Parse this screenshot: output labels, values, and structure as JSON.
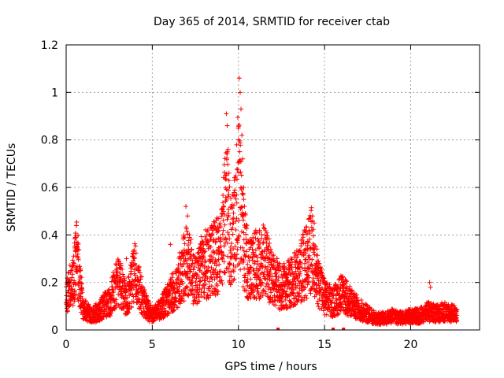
{
  "chart_data": {
    "type": "scatter",
    "title": "Day 365 of 2014, SRMTID for receiver ctab",
    "xlabel": "GPS time / hours",
    "ylabel": "SRMTID / TECUs",
    "xlim": [
      0,
      24
    ],
    "ylim": [
      0,
      1.2
    ],
    "xticks": [
      0,
      5,
      10,
      15,
      20
    ],
    "xtick_labels": [
      "0",
      "5",
      "10",
      "15",
      "20"
    ],
    "yticks": [
      0,
      0.2,
      0.4,
      0.6,
      0.8,
      1.0,
      1.2
    ],
    "ytick_labels": [
      "0",
      "0.2",
      "0.4",
      "0.6",
      "0.8",
      "1",
      "1.2"
    ],
    "grid": true,
    "marker": "+",
    "series": [
      {
        "name": "SRMTID",
        "color": "#ff0000",
        "profile": [
          [
            0.0,
            0.14
          ],
          [
            0.2,
            0.18
          ],
          [
            0.4,
            0.2
          ],
          [
            0.6,
            0.32
          ],
          [
            0.8,
            0.2
          ],
          [
            1.0,
            0.09
          ],
          [
            1.5,
            0.06
          ],
          [
            2.0,
            0.09
          ],
          [
            2.5,
            0.12
          ],
          [
            3.0,
            0.22
          ],
          [
            3.5,
            0.12
          ],
          [
            4.0,
            0.25
          ],
          [
            4.5,
            0.12
          ],
          [
            5.0,
            0.06
          ],
          [
            5.5,
            0.09
          ],
          [
            6.0,
            0.14
          ],
          [
            6.5,
            0.2
          ],
          [
            7.0,
            0.3
          ],
          [
            7.5,
            0.22
          ],
          [
            8.0,
            0.28
          ],
          [
            8.5,
            0.3
          ],
          [
            9.0,
            0.33
          ],
          [
            9.3,
            0.55
          ],
          [
            9.6,
            0.35
          ],
          [
            10.0,
            0.62
          ],
          [
            10.3,
            0.38
          ],
          [
            10.6,
            0.25
          ],
          [
            11.0,
            0.28
          ],
          [
            11.5,
            0.3
          ],
          [
            12.0,
            0.22
          ],
          [
            12.5,
            0.18
          ],
          [
            13.0,
            0.2
          ],
          [
            13.5,
            0.24
          ],
          [
            14.0,
            0.3
          ],
          [
            14.3,
            0.36
          ],
          [
            14.6,
            0.22
          ],
          [
            15.0,
            0.14
          ],
          [
            15.5,
            0.12
          ],
          [
            16.0,
            0.16
          ],
          [
            16.5,
            0.12
          ],
          [
            17.0,
            0.09
          ],
          [
            17.5,
            0.07
          ],
          [
            18.0,
            0.05
          ],
          [
            18.5,
            0.05
          ],
          [
            19.0,
            0.06
          ],
          [
            19.5,
            0.05
          ],
          [
            20.0,
            0.06
          ],
          [
            20.5,
            0.06
          ],
          [
            21.0,
            0.08
          ],
          [
            21.5,
            0.07
          ],
          [
            22.0,
            0.08
          ],
          [
            22.5,
            0.07
          ],
          [
            22.7,
            0.06
          ]
        ],
        "peaks": [
          [
            0.55,
            0.39
          ],
          [
            0.6,
            0.37
          ],
          [
            3.5,
            0.3
          ],
          [
            3.9,
            0.32
          ],
          [
            6.05,
            0.36
          ],
          [
            6.95,
            0.52
          ],
          [
            7.05,
            0.48
          ],
          [
            9.3,
            0.91
          ],
          [
            9.35,
            0.86
          ],
          [
            9.4,
            0.76
          ],
          [
            9.45,
            0.66
          ],
          [
            10.05,
            1.06
          ],
          [
            10.1,
            1.0
          ],
          [
            10.15,
            0.93
          ],
          [
            10.2,
            0.82
          ],
          [
            10.25,
            0.72
          ],
          [
            10.3,
            0.6
          ],
          [
            10.35,
            0.52
          ],
          [
            14.3,
            0.48
          ],
          [
            14.4,
            0.45
          ],
          [
            16.3,
            0.13
          ],
          [
            21.1,
            0.2
          ],
          [
            21.15,
            0.18
          ]
        ],
        "zero_marks": [
          12.3,
          15.5,
          16.1
        ]
      }
    ]
  }
}
